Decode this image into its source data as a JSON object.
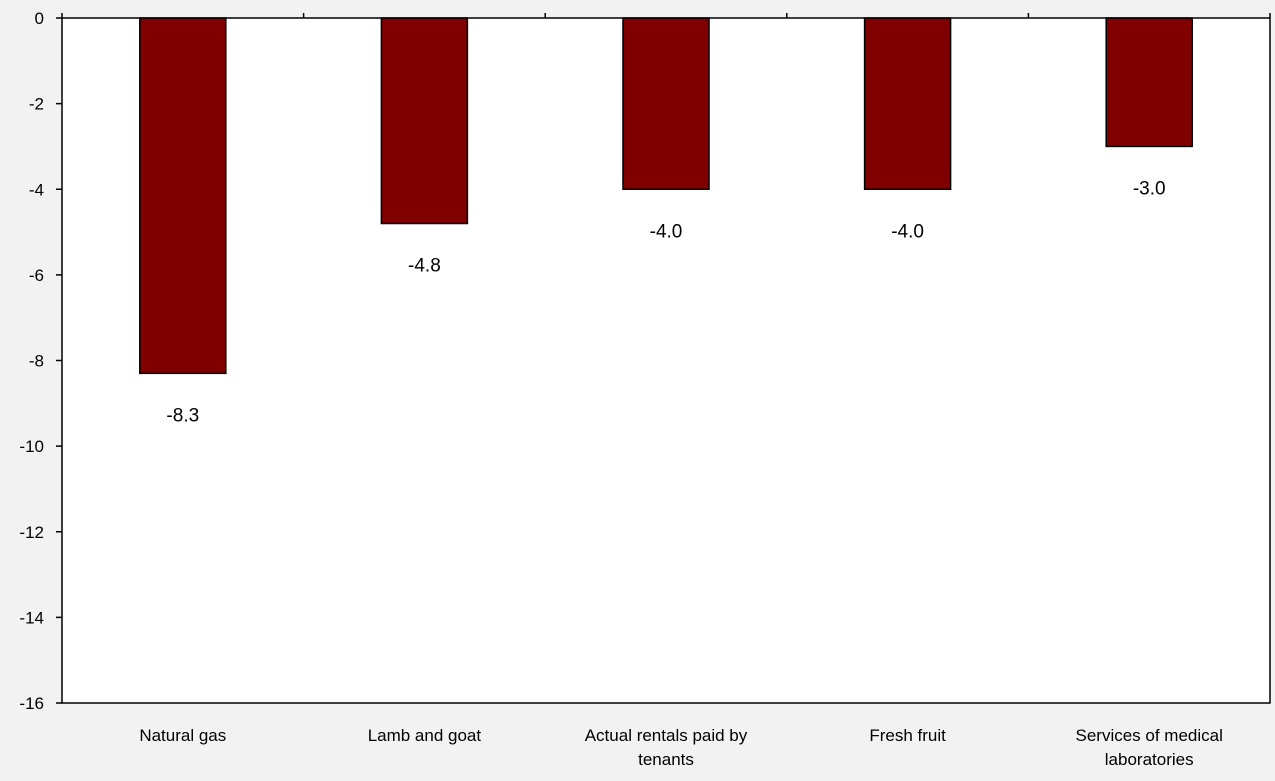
{
  "chart_data": {
    "type": "bar",
    "categories": [
      [
        "Natural gas"
      ],
      [
        "Lamb and goat"
      ],
      [
        "Actual rentals paid by",
        "tenants"
      ],
      [
        "Fresh fruit"
      ],
      [
        "Services of medical",
        "laboratories"
      ]
    ],
    "values": [
      -8.3,
      -4.8,
      -4.0,
      -4.0,
      -3.0
    ],
    "data_labels": [
      "-8.3",
      "-4.8",
      "-4.0",
      "-4.0",
      "-3.0"
    ],
    "yticks": [
      0,
      -2,
      -4,
      -6,
      -8,
      -10,
      -12,
      -14,
      -16
    ],
    "ylim": [
      -16,
      0
    ],
    "title": "",
    "xlabel": "",
    "ylabel": "",
    "grid": false,
    "legend": "none",
    "colors": {
      "bar_fill": "#800000",
      "bar_stroke": "#000000",
      "plot_background": "#ffffff",
      "page_background": "#f2f2f2",
      "axis": "#000000"
    }
  }
}
